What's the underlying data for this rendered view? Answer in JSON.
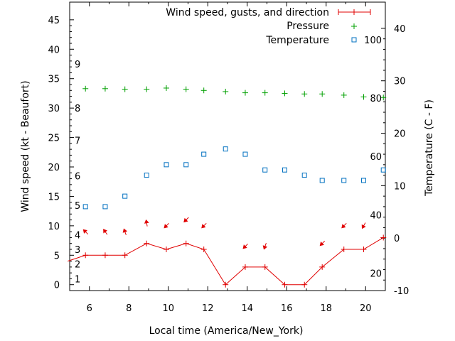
{
  "chart_data": {
    "type": "line",
    "title": "",
    "xlabel": "Local time (America/New_York)",
    "ylabel": "Wind speed (kt - Beaufort)",
    "y2label": "Temperature (C - F)",
    "xlim": [
      5,
      21
    ],
    "ylim": [
      -1,
      48
    ],
    "y2lim": [
      -10,
      45
    ],
    "x_ticks": [
      6,
      8,
      10,
      12,
      14,
      16,
      18,
      20
    ],
    "y_ticks": [
      0,
      5,
      10,
      15,
      20,
      25,
      30,
      35,
      40,
      45
    ],
    "y2_ticks": [
      -10,
      0,
      10,
      20,
      30,
      40
    ],
    "beaufort_labels": [
      {
        "label": "1",
        "kt": 1
      },
      {
        "label": "2",
        "kt": 3.5
      },
      {
        "label": "3",
        "kt": 6
      },
      {
        "label": "4",
        "kt": 8.5
      },
      {
        "label": "5",
        "kt": 13.5
      },
      {
        "label": "6",
        "kt": 18.5
      },
      {
        "label": "7",
        "kt": 24.5
      },
      {
        "label": "8",
        "kt": 30
      },
      {
        "label": "9",
        "kt": 37.5
      }
    ],
    "fahrenheit_labels": [
      {
        "label": "20",
        "celsius": -6.7
      },
      {
        "label": "40",
        "celsius": 4.4
      },
      {
        "label": "60",
        "celsius": 15.6
      },
      {
        "label": "80",
        "celsius": 26.7
      },
      {
        "label": "100",
        "celsius": 37.8
      }
    ],
    "legend": [
      {
        "label": "Wind speed, gusts, and direction",
        "series": "wind"
      },
      {
        "label": "Pressure",
        "series": "pressure"
      },
      {
        "label": "Temperature",
        "series": "temperature"
      }
    ],
    "colors": {
      "wind": "#e00000",
      "pressure": "#00a000",
      "temperature": "#0070c0"
    },
    "series": [
      {
        "name": "wind",
        "axis": "y",
        "x": [
          4.9,
          5.8,
          6.8,
          7.8,
          8.9,
          9.9,
          10.9,
          11.8,
          12.9,
          13.9,
          14.9,
          15.9,
          16.9,
          17.8,
          18.9,
          19.9,
          20.9
        ],
        "values": [
          4,
          5,
          5,
          5,
          7,
          6,
          7,
          6,
          0,
          3,
          3,
          0,
          0,
          3,
          6,
          6,
          8
        ]
      },
      {
        "name": "wind_direction",
        "axis": "y",
        "x": [
          5.8,
          6.8,
          7.8,
          8.9,
          9.9,
          10.9,
          11.8,
          13.9,
          14.9,
          17.8,
          18.9,
          19.9
        ],
        "y": [
          9,
          9,
          9,
          10.5,
          10,
          11,
          10,
          6.5,
          6.5,
          7,
          10,
          10
        ],
        "direction_deg": [
          225,
          235,
          250,
          260,
          135,
          135,
          135,
          135,
          110,
          135,
          135,
          120
        ]
      },
      {
        "name": "pressure",
        "axis": "y",
        "x": [
          5.8,
          6.8,
          7.8,
          8.9,
          9.9,
          10.9,
          11.8,
          12.9,
          13.9,
          14.9,
          15.9,
          16.9,
          17.8,
          18.9,
          19.9,
          20.9
        ],
        "values": [
          33.3,
          33.3,
          33.2,
          33.2,
          33.4,
          33.2,
          33.0,
          32.8,
          32.6,
          32.6,
          32.5,
          32.4,
          32.4,
          32.2,
          31.9,
          31.8
        ]
      },
      {
        "name": "temperature",
        "axis": "y2",
        "x": [
          5.8,
          6.8,
          7.8,
          8.9,
          9.9,
          10.9,
          11.8,
          12.9,
          13.9,
          14.9,
          15.9,
          16.9,
          17.8,
          18.9,
          19.9,
          20.9
        ],
        "values": [
          6,
          6,
          8,
          12,
          14,
          14,
          16,
          17,
          16,
          13,
          13,
          12,
          11,
          11,
          11,
          13
        ]
      }
    ]
  }
}
